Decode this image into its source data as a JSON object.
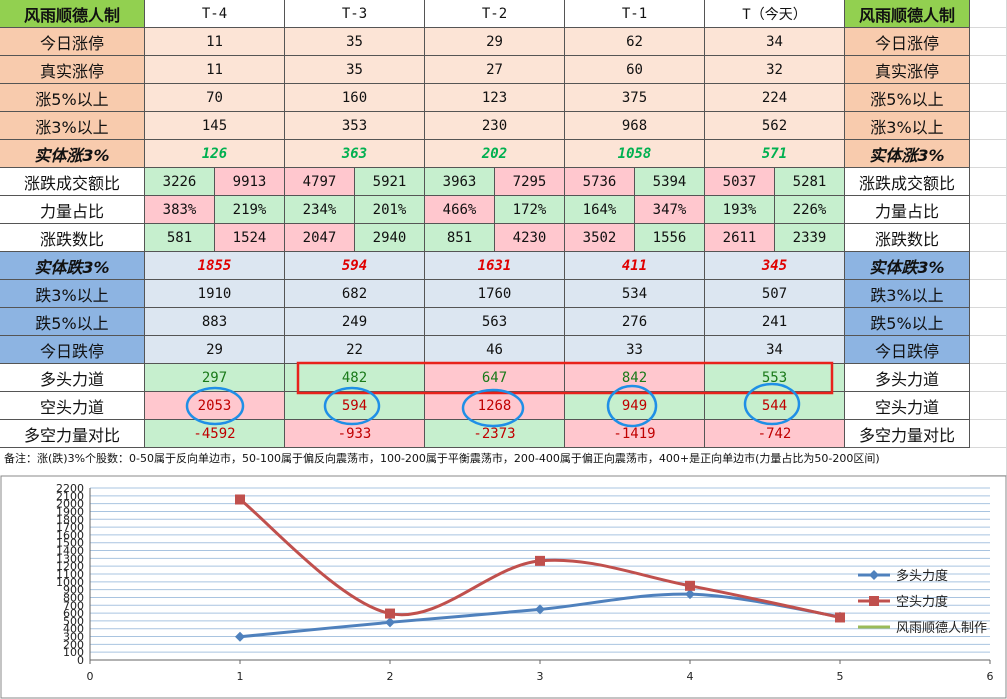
{
  "table": {
    "header": [
      "风雨顺德人制",
      "T-4",
      "T-3",
      "T-2",
      "T-1",
      "T（今天）",
      "风雨顺德人制"
    ],
    "rows": [
      {
        "label": "今日涨停",
        "values": [
          11,
          35,
          29,
          62,
          34
        ]
      },
      {
        "label": "真实涨停",
        "values": [
          11,
          35,
          27,
          60,
          32
        ]
      },
      {
        "label": "涨5%以上",
        "values": [
          70,
          160,
          123,
          375,
          224
        ]
      },
      {
        "label": "涨3%以上",
        "values": [
          145,
          353,
          230,
          968,
          562
        ]
      },
      {
        "label": "实体涨3%",
        "values": [
          126,
          363,
          202,
          1058,
          571
        ]
      },
      {
        "label": "涨跌成交额比",
        "values": [
          [
            3226,
            9913
          ],
          [
            4797,
            5921
          ],
          [
            3963,
            7295
          ],
          [
            5736,
            5394
          ],
          [
            5037,
            5281
          ]
        ]
      },
      {
        "label": "力量占比",
        "values": [
          [
            "383%",
            "219%"
          ],
          [
            "234%",
            "201%"
          ],
          [
            "466%",
            "172%"
          ],
          [
            "164%",
            "347%"
          ],
          [
            "193%",
            "226%"
          ]
        ]
      },
      {
        "label": "涨跌数比",
        "values": [
          [
            581,
            1524
          ],
          [
            2047,
            2940
          ],
          [
            851,
            4230
          ],
          [
            3502,
            1556
          ],
          [
            2611,
            2339
          ]
        ]
      },
      {
        "label": "实体跌3%",
        "values": [
          1855,
          594,
          1631,
          411,
          345
        ]
      },
      {
        "label": "跌3%以上",
        "values": [
          1910,
          682,
          1760,
          534,
          507
        ]
      },
      {
        "label": "跌5%以上",
        "values": [
          883,
          249,
          563,
          276,
          241
        ]
      },
      {
        "label": "今日跌停",
        "values": [
          29,
          22,
          46,
          33,
          34
        ]
      },
      {
        "label": "多头力道",
        "values": [
          297,
          482,
          647,
          842,
          553
        ]
      },
      {
        "label": "空头力道",
        "values": [
          2053,
          594,
          1268,
          949,
          544
        ]
      },
      {
        "label": "多空力量对比",
        "values": [
          -4592,
          -933,
          -2373,
          -1419,
          -742
        ]
      }
    ],
    "note": "备注：涨(跌)3%个股数：0-50属于反向单边市，50-100属于偏反向震荡市，100-200属于平衡震荡市，200-400属于偏正向震荡市，400+是正向单边市(力量占比为50-200区间)"
  },
  "chart_data": {
    "type": "line",
    "x": [
      1,
      2,
      3,
      4,
      5
    ],
    "series": [
      {
        "name": "多头力度",
        "color": "#4f81bd",
        "values": [
          297,
          482,
          647,
          842,
          553
        ]
      },
      {
        "name": "空头力度",
        "color": "#c0504d",
        "values": [
          2053,
          594,
          1268,
          949,
          544
        ]
      },
      {
        "name": "风雨顺德人制作",
        "color": "#9bbb59"
      }
    ],
    "xlim": [
      0,
      6
    ],
    "xticks": [
      0,
      1,
      2,
      3,
      4,
      5,
      6
    ],
    "ylim": [
      0,
      2200
    ],
    "yticks": [
      0,
      100,
      200,
      300,
      400,
      500,
      600,
      700,
      800,
      900,
      1000,
      1100,
      1200,
      1300,
      1400,
      1500,
      1600,
      1700,
      1800,
      1900,
      2000,
      2100,
      2200
    ],
    "grid": true,
    "legend": "right"
  }
}
